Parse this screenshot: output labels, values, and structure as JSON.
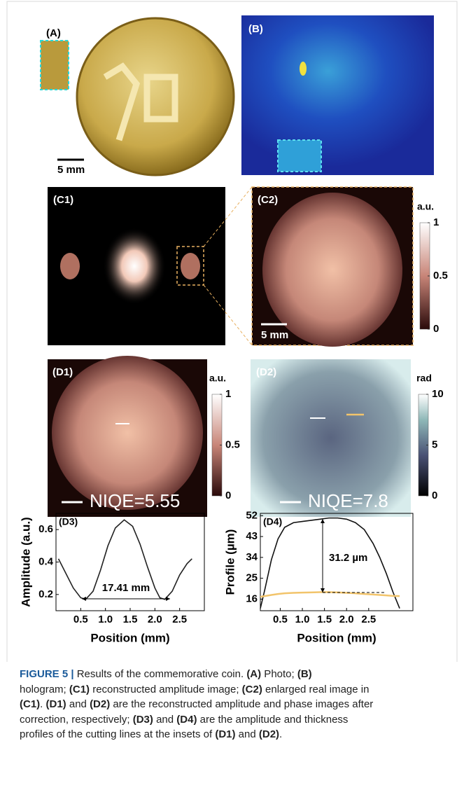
{
  "panels": {
    "A": {
      "label": "(A)",
      "scale": "5 mm"
    },
    "B": {
      "label": "(B)"
    },
    "C1": {
      "label": "(C1)"
    },
    "C2": {
      "label": "(C2)",
      "scale": "5 mm",
      "colorbar": {
        "title": "a.u.",
        "lim": [
          0,
          1
        ],
        "ticks": [
          0,
          0.5,
          1
        ]
      }
    },
    "D1": {
      "label": "(D1)",
      "metric": "NIQE=5.55",
      "colorbar": {
        "title": "a.u.",
        "lim": [
          0,
          1
        ],
        "ticks": [
          0,
          0.5,
          1
        ]
      }
    },
    "D2": {
      "label": "(D2)",
      "metric": "NIQE=7.8",
      "colorbar": {
        "title": "rad",
        "lim": [
          0,
          10
        ],
        "ticks": [
          0,
          5,
          10
        ]
      }
    }
  },
  "chart_data": [
    {
      "type": "line",
      "label": "(D3)",
      "x_label": "Position (mm)",
      "y_label": "Amplitude (a.u.)",
      "annotation": "17.41 mm",
      "x": [
        0.05,
        0.2,
        0.35,
        0.5,
        0.6,
        0.75,
        0.9,
        1.05,
        1.2,
        1.38,
        1.55,
        1.7,
        1.85,
        2.0,
        2.1,
        2.2,
        2.35,
        2.5,
        2.65,
        2.75
      ],
      "series": [
        {
          "color": "#222222",
          "values": [
            0.42,
            0.33,
            0.24,
            0.18,
            0.17,
            0.22,
            0.35,
            0.5,
            0.61,
            0.66,
            0.62,
            0.51,
            0.37,
            0.24,
            0.18,
            0.17,
            0.22,
            0.32,
            0.39,
            0.42
          ]
        }
      ],
      "xlim": [
        0,
        3
      ],
      "ylim": [
        0.1,
        0.7
      ],
      "xticks": [
        0.5,
        {
          "value": 1,
          "label": "1.0"
        },
        1.5,
        {
          "value": 2,
          "label": "2.0"
        },
        2.5
      ],
      "yticks": [
        0.2,
        0.4,
        0.6
      ]
    },
    {
      "type": "line",
      "label": "(D4)",
      "x_label": "Position (mm)",
      "y_label": "Profile (µm)",
      "annotation": "31.2 µm",
      "x": [
        0.05,
        0.15,
        0.3,
        0.45,
        0.6,
        0.8,
        1.0,
        1.2,
        1.4,
        1.6,
        1.8,
        2.0,
        2.2,
        2.4,
        2.6,
        2.75,
        2.9,
        3.05,
        3.2
      ],
      "series": [
        {
          "color": "#111111",
          "values": [
            12,
            20,
            33,
            42,
            47,
            49,
            49.5,
            50,
            50.5,
            51,
            51,
            50.5,
            49,
            46,
            40,
            34,
            27,
            19,
            12
          ]
        },
        {
          "color": "#f2c46b",
          "values": [
            17,
            17.3,
            17.8,
            18.2,
            18.5,
            18.7,
            18.8,
            18.9,
            19,
            19,
            18.9,
            18.7,
            18.5,
            18.2,
            18,
            17.8,
            17.6,
            17.4,
            17.3
          ]
        }
      ],
      "xlim": [
        0.05,
        3.5
      ],
      "ylim": [
        11,
        53
      ],
      "xticks": [
        0.5,
        {
          "value": 1,
          "label": "1.0"
        },
        1.5,
        {
          "value": 2,
          "label": "2.0"
        },
        2.5
      ],
      "yticks": [
        16,
        25,
        34,
        43,
        52
      ]
    }
  ],
  "caption": [
    [
      {
        "text": "FIGURE 5 | ",
        "bold": true
      },
      {
        "text": "Results of the commemorative coin. ",
        "bold": false
      },
      {
        "text": "(A)",
        "bold": true
      },
      {
        "text": " Photo; ",
        "bold": false
      },
      {
        "text": "(B)",
        "bold": true
      }
    ],
    [
      {
        "text": "hologram; ",
        "bold": false
      },
      {
        "text": "(C1)",
        "bold": true
      },
      {
        "text": " reconstructed amplitude image; ",
        "bold": false
      },
      {
        "text": "(C2)",
        "bold": true
      },
      {
        "text": " enlarged real image in",
        "bold": false
      }
    ],
    [
      {
        "text": "(C1)",
        "bold": true
      },
      {
        "text": ". ",
        "bold": false
      },
      {
        "text": "(D1)",
        "bold": true
      },
      {
        "text": " and ",
        "bold": false
      },
      {
        "text": "(D2)",
        "bold": true
      },
      {
        "text": " are the reconstructed amplitude and phase images after",
        "bold": false
      }
    ],
    [
      {
        "text": "correction, respectively; ",
        "bold": false
      },
      {
        "text": "(D3)",
        "bold": true
      },
      {
        "text": " and ",
        "bold": false
      },
      {
        "text": "(D4)",
        "bold": true
      },
      {
        "text": " are the amplitude and thickness",
        "bold": false
      }
    ],
    [
      {
        "text": "profiles of the cutting lines at the insets of ",
        "bold": false
      },
      {
        "text": "(D1)",
        "bold": true
      },
      {
        "text": " and ",
        "bold": false
      },
      {
        "text": "(D2)",
        "bold": true
      },
      {
        "text": ".",
        "bold": false
      }
    ]
  ]
}
